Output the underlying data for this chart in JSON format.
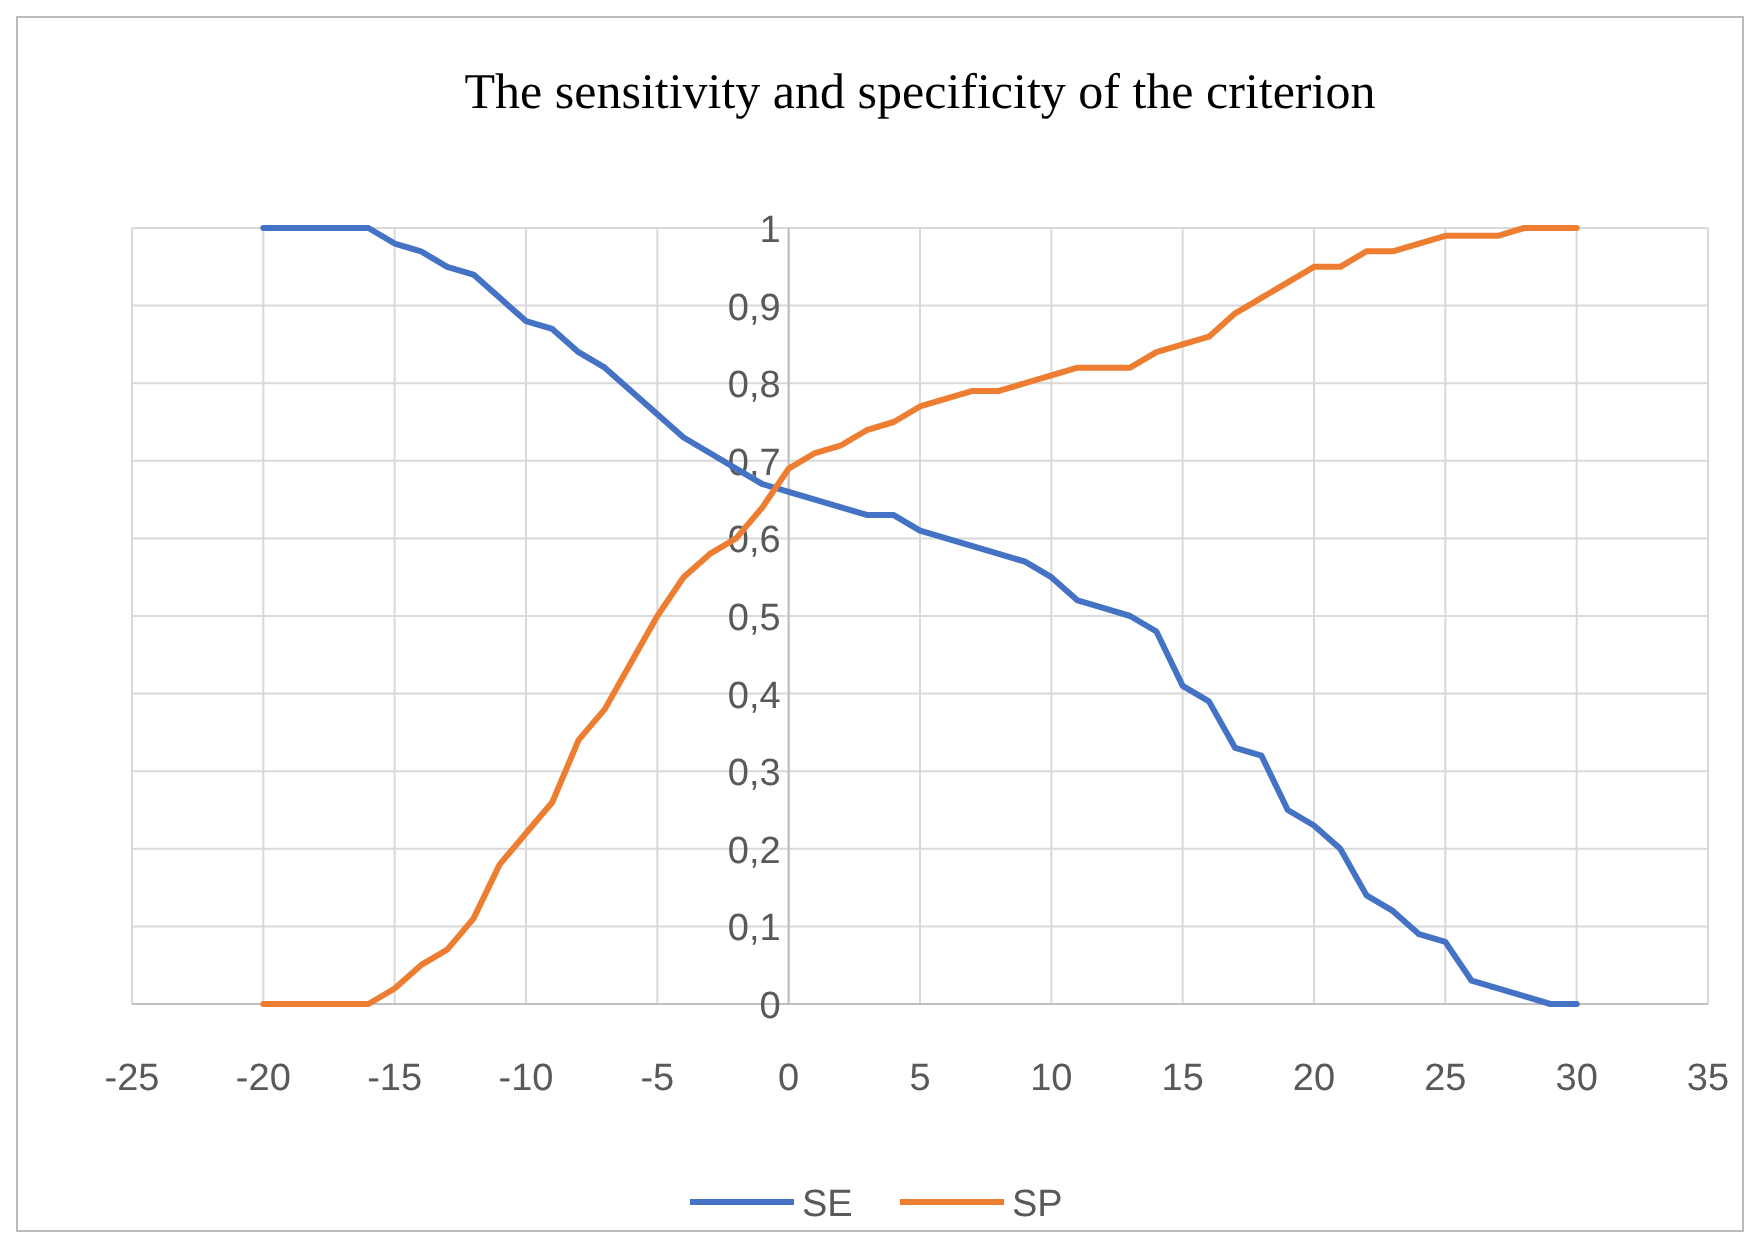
{
  "chart_data": {
    "type": "line",
    "title": "The sensitivity and specificity of the criterion",
    "x": [
      -20,
      -19,
      -18,
      -17,
      -16,
      -15,
      -14,
      -13,
      -12,
      -11,
      -10,
      -9,
      -8,
      -7,
      -6,
      -5,
      -4,
      -3,
      -2,
      -1,
      0,
      1,
      2,
      3,
      4,
      5,
      6,
      7,
      8,
      9,
      10,
      11,
      12,
      13,
      14,
      15,
      16,
      17,
      18,
      19,
      20,
      21,
      22,
      23,
      24,
      25,
      26,
      27,
      28,
      29,
      30
    ],
    "series": [
      {
        "name": "SE",
        "color": "#4472c4",
        "values": [
          1,
          1,
          1,
          1,
          1,
          0.98,
          0.97,
          0.95,
          0.94,
          0.91,
          0.88,
          0.87,
          0.84,
          0.82,
          0.79,
          0.76,
          0.73,
          0.71,
          0.69,
          0.67,
          0.66,
          0.65,
          0.64,
          0.63,
          0.63,
          0.61,
          0.6,
          0.59,
          0.58,
          0.57,
          0.55,
          0.52,
          0.51,
          0.5,
          0.48,
          0.41,
          0.39,
          0.33,
          0.32,
          0.25,
          0.23,
          0.2,
          0.14,
          0.12,
          0.09,
          0.08,
          0.03,
          0.02,
          0.01,
          0,
          0
        ]
      },
      {
        "name": "SP",
        "color": "#ed7d31",
        "values": [
          0,
          0,
          0,
          0,
          0,
          0.02,
          0.05,
          0.07,
          0.11,
          0.18,
          0.22,
          0.26,
          0.34,
          0.38,
          0.44,
          0.5,
          0.55,
          0.58,
          0.6,
          0.64,
          0.69,
          0.71,
          0.72,
          0.74,
          0.75,
          0.77,
          0.78,
          0.79,
          0.79,
          0.8,
          0.81,
          0.82,
          0.82,
          0.82,
          0.84,
          0.85,
          0.86,
          0.89,
          0.91,
          0.93,
          0.95,
          0.95,
          0.97,
          0.97,
          0.98,
          0.99,
          0.99,
          0.99,
          1,
          1,
          1
        ]
      }
    ],
    "xlim": [
      -25,
      35
    ],
    "xticks": [
      -25,
      -20,
      -15,
      -10,
      -5,
      0,
      5,
      10,
      15,
      20,
      25,
      30,
      35
    ],
    "ylim": [
      0,
      1
    ],
    "yticks": [
      0,
      {
        "value": 0.1,
        "label": "0,1"
      },
      {
        "value": 0.2,
        "label": "0,2"
      },
      {
        "value": 0.3,
        "label": "0,3"
      },
      {
        "value": 0.4,
        "label": "0,4"
      },
      {
        "value": 0.5,
        "label": "0,5"
      },
      {
        "value": 0.6,
        "label": "0,6"
      },
      {
        "value": 0.7,
        "label": "0,7"
      },
      {
        "value": 0.8,
        "label": "0,8"
      },
      {
        "value": 0.9,
        "label": "0,9"
      },
      1
    ],
    "grid": true,
    "legend": "bottom",
    "marker": "none",
    "line_style": "solid"
  }
}
